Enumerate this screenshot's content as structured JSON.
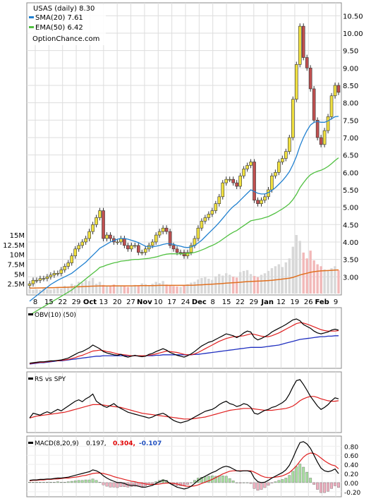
{
  "chart_data": [
    {
      "type": "candlestick",
      "legend": {
        "title": "USAS (daily) 8.30",
        "sma": "SMA(20) 7.61",
        "ema": "EMA(50) 6.42",
        "source": "OptionChance.com"
      },
      "colors": {
        "up": "#f0e040",
        "down": "#c05050",
        "sma": "#2080d0",
        "ema": "#50c040",
        "vol_avg": "#e07020"
      },
      "y_ticks": [
        "10.50",
        "10.00",
        "9.50",
        "9.00",
        "8.50",
        "8.00",
        "7.50",
        "7.00",
        "6.50",
        "6.00",
        "5.50",
        "5.00",
        "4.50",
        "4.00",
        "3.50",
        "3.00"
      ],
      "y_tick_values": [
        10.5,
        10.0,
        9.5,
        9.0,
        8.5,
        8.0,
        7.5,
        7.0,
        6.5,
        6.0,
        5.5,
        5.0,
        4.5,
        4.0,
        3.5,
        3.0
      ],
      "ylim": [
        2.6,
        10.75
      ],
      "volume_ticks": [
        "15M",
        "12.5M",
        "10M",
        "7.5M",
        "5M",
        "2.5M"
      ],
      "volume_tick_values": [
        15,
        12.5,
        10,
        7.5,
        5,
        2.5
      ],
      "volume_max": 17,
      "x_ticks": [
        "8",
        "15",
        "22",
        "29",
        "Oct",
        "13",
        "20",
        "27",
        "Nov",
        "10",
        "17",
        "24",
        "Dec",
        "8",
        "15",
        "22",
        "29",
        "Jan",
        "12",
        "19",
        "26",
        "Feb",
        "9"
      ],
      "close": [
        2.8,
        2.9,
        2.9,
        2.95,
        2.95,
        3.0,
        3.05,
        3.1,
        3.1,
        3.2,
        3.3,
        3.4,
        3.6,
        3.8,
        3.9,
        4.0,
        4.1,
        4.3,
        4.5,
        4.7,
        4.9,
        4.1,
        4.2,
        4.1,
        4.0,
        4.0,
        4.1,
        3.9,
        3.8,
        3.9,
        3.9,
        3.7,
        3.7,
        3.8,
        3.9,
        4.0,
        4.2,
        4.3,
        4.4,
        4.3,
        3.9,
        3.8,
        3.7,
        3.7,
        3.6,
        3.7,
        3.9,
        4.1,
        4.4,
        4.6,
        4.7,
        4.8,
        4.9,
        5.1,
        5.3,
        5.7,
        5.8,
        5.8,
        5.7,
        5.6,
        5.9,
        6.1,
        6.2,
        6.3,
        5.2,
        5.1,
        5.2,
        5.3,
        5.5,
        5.9,
        6.0,
        6.3,
        6.4,
        6.6,
        7.0,
        8.1,
        9.1,
        10.2,
        9.3,
        9.0,
        8.4,
        7.5,
        7.0,
        6.8,
        7.2,
        7.6,
        8.2,
        8.5,
        8.3
      ],
      "volume": [
        1.2,
        1.0,
        1.1,
        0.9,
        1.3,
        1.1,
        1.0,
        1.2,
        1.5,
        1.3,
        2.0,
        1.8,
        2.5,
        2.2,
        3.0,
        2.8,
        3.5,
        3.2,
        4.0,
        2.5,
        3.0,
        2.2,
        2.0,
        1.8,
        2.3,
        2.1,
        1.9,
        2.0,
        1.7,
        1.8,
        2.2,
        2.0,
        2.6,
        2.4,
        2.1,
        2.5,
        3.0,
        2.7,
        3.2,
        2.3,
        2.0,
        1.9,
        1.8,
        1.7,
        2.0,
        2.4,
        2.8,
        3.0,
        3.6,
        4.0,
        4.2,
        3.8,
        3.5,
        4.4,
        5.0,
        4.6,
        5.2,
        4.8,
        4.3,
        4.1,
        5.5,
        5.8,
        6.0,
        5.0,
        4.5,
        4.2,
        4.8,
        5.2,
        5.8,
        6.5,
        7.0,
        7.5,
        6.8,
        8.0,
        9.0,
        12.0,
        15.0,
        13.5,
        10.5,
        9.0,
        11.0,
        8.5,
        7.5,
        7.0,
        6.2,
        5.8,
        6.5,
        7.0,
        6.0
      ],
      "volume_avg_label": "",
      "sma20": [
        2.3,
        2.38,
        2.46,
        2.54,
        2.62,
        2.7,
        2.78,
        2.84,
        2.9,
        2.95,
        3.0,
        3.05,
        3.1,
        3.18,
        3.26,
        3.34,
        3.42,
        3.52,
        3.62,
        3.72,
        3.82,
        3.88,
        3.94,
        4.0,
        4.04,
        4.08,
        4.1,
        4.1,
        4.08,
        4.05,
        4.02,
        3.98,
        3.93,
        3.88,
        3.86,
        3.86,
        3.88,
        3.9,
        3.93,
        3.95,
        3.95,
        3.93,
        3.9,
        3.88,
        3.85,
        3.84,
        3.86,
        3.9,
        3.97,
        4.05,
        4.15,
        4.25,
        4.35,
        4.45,
        4.56,
        4.68,
        4.8,
        4.92,
        5.02,
        5.1,
        5.2,
        5.3,
        5.4,
        5.5,
        5.45,
        5.4,
        5.38,
        5.38,
        5.42,
        5.48,
        5.56,
        5.66,
        5.76,
        5.88,
        6.02,
        6.22,
        6.46,
        6.76,
        7.0,
        7.2,
        7.36,
        7.44,
        7.46,
        7.44,
        7.44,
        7.48,
        7.54,
        7.6,
        7.61
      ],
      "ema50": [
        1.9,
        1.96,
        2.02,
        2.08,
        2.14,
        2.2,
        2.26,
        2.32,
        2.38,
        2.44,
        2.5,
        2.56,
        2.62,
        2.7,
        2.78,
        2.86,
        2.94,
        3.02,
        3.1,
        3.18,
        3.27,
        3.3,
        3.34,
        3.37,
        3.4,
        3.42,
        3.45,
        3.46,
        3.47,
        3.49,
        3.5,
        3.5,
        3.51,
        3.52,
        3.53,
        3.55,
        3.57,
        3.6,
        3.63,
        3.65,
        3.66,
        3.66,
        3.66,
        3.66,
        3.66,
        3.67,
        3.68,
        3.7,
        3.73,
        3.77,
        3.81,
        3.86,
        3.9,
        3.95,
        4.01,
        4.08,
        4.15,
        4.22,
        4.28,
        4.33,
        4.4,
        4.47,
        4.54,
        4.61,
        4.63,
        4.65,
        4.67,
        4.7,
        4.73,
        4.78,
        4.83,
        4.89,
        4.95,
        5.02,
        5.1,
        5.22,
        5.37,
        5.56,
        5.7,
        5.83,
        5.93,
        5.99,
        6.03,
        6.06,
        6.11,
        6.17,
        6.25,
        6.34,
        6.42
      ],
      "vol_avg": [
        1.4,
        1.4,
        1.42,
        1.44,
        1.46,
        1.48,
        1.5,
        1.52,
        1.55,
        1.58,
        1.6,
        1.63,
        1.66,
        1.7,
        1.74,
        1.78,
        1.82,
        1.86,
        1.9,
        1.92,
        1.94,
        1.95,
        1.96,
        1.96,
        1.97,
        1.98,
        1.98,
        1.98,
        1.98,
        1.98,
        1.99,
        2.0,
        2.02,
        2.03,
        2.04,
        2.05,
        2.07,
        2.09,
        2.1,
        2.1,
        2.1,
        2.1,
        2.1,
        2.1,
        2.1,
        2.11,
        2.13,
        2.16,
        2.2,
        2.25,
        2.3,
        2.35,
        2.4,
        2.46,
        2.52,
        2.58,
        2.65,
        2.72,
        2.78,
        2.83,
        2.9,
        2.98,
        3.05,
        3.1,
        3.14,
        3.18,
        3.22,
        3.27,
        3.33,
        3.4,
        3.5,
        3.6,
        3.7,
        3.82,
        3.95,
        4.15,
        4.45,
        4.75,
        5.0,
        5.2,
        5.45,
        5.6,
        5.72,
        5.8,
        5.86,
        5.9,
        5.95,
        6.0,
        6.05
      ]
    },
    {
      "type": "line",
      "legend": "OBV(10) (50)",
      "obv": [
        0.05,
        0.06,
        0.07,
        0.08,
        0.08,
        0.09,
        0.1,
        0.1,
        0.11,
        0.12,
        0.14,
        0.16,
        0.2,
        0.24,
        0.28,
        0.3,
        0.34,
        0.38,
        0.44,
        0.4,
        0.36,
        0.3,
        0.27,
        0.25,
        0.23,
        0.22,
        0.24,
        0.2,
        0.18,
        0.2,
        0.22,
        0.2,
        0.19,
        0.2,
        0.24,
        0.26,
        0.3,
        0.33,
        0.36,
        0.33,
        0.28,
        0.25,
        0.22,
        0.2,
        0.18,
        0.21,
        0.25,
        0.3,
        0.36,
        0.42,
        0.46,
        0.5,
        0.52,
        0.56,
        0.6,
        0.64,
        0.68,
        0.66,
        0.64,
        0.6,
        0.64,
        0.7,
        0.74,
        0.72,
        0.6,
        0.55,
        0.58,
        0.62,
        0.66,
        0.72,
        0.76,
        0.8,
        0.84,
        0.88,
        0.93,
        0.98,
        1.0,
        0.96,
        0.88,
        0.84,
        0.8,
        0.74,
        0.7,
        0.68,
        0.7,
        0.72,
        0.76,
        0.78,
        0.76
      ],
      "obv10": [
        0.04,
        0.05,
        0.06,
        0.07,
        0.07,
        0.08,
        0.09,
        0.1,
        0.1,
        0.11,
        0.12,
        0.13,
        0.15,
        0.17,
        0.2,
        0.22,
        0.25,
        0.28,
        0.31,
        0.32,
        0.33,
        0.32,
        0.3,
        0.29,
        0.27,
        0.25,
        0.24,
        0.23,
        0.22,
        0.21,
        0.21,
        0.21,
        0.21,
        0.21,
        0.22,
        0.23,
        0.25,
        0.27,
        0.29,
        0.31,
        0.3,
        0.29,
        0.28,
        0.26,
        0.24,
        0.23,
        0.23,
        0.25,
        0.28,
        0.32,
        0.36,
        0.4,
        0.44,
        0.48,
        0.52,
        0.55,
        0.58,
        0.6,
        0.62,
        0.62,
        0.63,
        0.64,
        0.66,
        0.68,
        0.67,
        0.65,
        0.63,
        0.62,
        0.62,
        0.64,
        0.67,
        0.7,
        0.74,
        0.78,
        0.82,
        0.86,
        0.9,
        0.92,
        0.91,
        0.89,
        0.86,
        0.83,
        0.8,
        0.77,
        0.75,
        0.74,
        0.74,
        0.74,
        0.75
      ],
      "obv50": [
        0.03,
        0.04,
        0.05,
        0.06,
        0.06,
        0.07,
        0.08,
        0.09,
        0.1,
        0.1,
        0.11,
        0.12,
        0.13,
        0.14,
        0.15,
        0.16,
        0.17,
        0.18,
        0.19,
        0.2,
        0.2,
        0.21,
        0.21,
        0.21,
        0.21,
        0.21,
        0.21,
        0.21,
        0.21,
        0.21,
        0.21,
        0.21,
        0.21,
        0.21,
        0.21,
        0.21,
        0.22,
        0.22,
        0.23,
        0.23,
        0.23,
        0.23,
        0.23,
        0.23,
        0.23,
        0.23,
        0.23,
        0.24,
        0.24,
        0.25,
        0.26,
        0.27,
        0.28,
        0.29,
        0.3,
        0.31,
        0.32,
        0.33,
        0.34,
        0.35,
        0.36,
        0.37,
        0.38,
        0.39,
        0.39,
        0.39,
        0.39,
        0.4,
        0.41,
        0.42,
        0.43,
        0.44,
        0.46,
        0.48,
        0.5,
        0.52,
        0.54,
        0.56,
        0.57,
        0.58,
        0.59,
        0.6,
        0.61,
        0.62,
        0.62,
        0.63,
        0.63,
        0.64,
        0.64
      ]
    },
    {
      "type": "line",
      "legend": "RS vs SPY",
      "rs": [
        0.2,
        0.3,
        0.28,
        0.26,
        0.3,
        0.33,
        0.3,
        0.34,
        0.38,
        0.35,
        0.4,
        0.45,
        0.5,
        0.55,
        0.58,
        0.54,
        0.6,
        0.64,
        0.7,
        0.55,
        0.5,
        0.45,
        0.42,
        0.46,
        0.5,
        0.44,
        0.4,
        0.36,
        0.32,
        0.3,
        0.28,
        0.26,
        0.24,
        0.22,
        0.2,
        0.22,
        0.26,
        0.28,
        0.3,
        0.26,
        0.2,
        0.15,
        0.12,
        0.1,
        0.12,
        0.14,
        0.18,
        0.22,
        0.26,
        0.3,
        0.34,
        0.36,
        0.38,
        0.42,
        0.48,
        0.52,
        0.55,
        0.5,
        0.48,
        0.44,
        0.46,
        0.5,
        0.48,
        0.42,
        0.3,
        0.28,
        0.32,
        0.36,
        0.38,
        0.42,
        0.44,
        0.48,
        0.52,
        0.58,
        0.7,
        0.85,
        0.98,
        1.0,
        0.9,
        0.78,
        0.65,
        0.55,
        0.45,
        0.38,
        0.42,
        0.48,
        0.56,
        0.62,
        0.6
      ],
      "rs_ma": [
        0.2,
        0.22,
        0.24,
        0.25,
        0.26,
        0.27,
        0.28,
        0.29,
        0.3,
        0.31,
        0.32,
        0.34,
        0.36,
        0.38,
        0.4,
        0.42,
        0.44,
        0.46,
        0.48,
        0.48,
        0.48,
        0.47,
        0.46,
        0.45,
        0.44,
        0.43,
        0.42,
        0.4,
        0.38,
        0.36,
        0.34,
        0.32,
        0.3,
        0.29,
        0.28,
        0.27,
        0.26,
        0.25,
        0.24,
        0.23,
        0.22,
        0.21,
        0.2,
        0.19,
        0.18,
        0.18,
        0.18,
        0.19,
        0.2,
        0.21,
        0.22,
        0.24,
        0.26,
        0.28,
        0.3,
        0.32,
        0.34,
        0.36,
        0.37,
        0.38,
        0.39,
        0.4,
        0.4,
        0.4,
        0.39,
        0.38,
        0.37,
        0.36,
        0.36,
        0.36,
        0.37,
        0.38,
        0.39,
        0.4,
        0.42,
        0.45,
        0.5,
        0.56,
        0.6,
        0.63,
        0.65,
        0.65,
        0.63,
        0.6,
        0.58,
        0.56,
        0.55,
        0.55,
        0.56
      ]
    },
    {
      "type": "line",
      "legend": {
        "label": "MACD(8,20,9)",
        "v1": "0.197,",
        "v2": "0.304,",
        "v3": "-0.107"
      },
      "y_ticks": [
        "0.80",
        "0.60",
        "0.40",
        "0.20",
        "0.00",
        "-0.20"
      ],
      "y_tick_values": [
        0.8,
        0.6,
        0.4,
        0.2,
        0.0,
        -0.2
      ],
      "ylim": [
        -0.28,
        0.96
      ],
      "macd": [
        0.05,
        0.06,
        0.06,
        0.07,
        0.07,
        0.08,
        0.08,
        0.09,
        0.1,
        0.1,
        0.11,
        0.12,
        0.14,
        0.16,
        0.18,
        0.2,
        0.22,
        0.24,
        0.28,
        0.26,
        0.22,
        0.15,
        0.1,
        0.06,
        0.03,
        0.0,
        0.0,
        -0.02,
        -0.05,
        -0.06,
        -0.06,
        -0.08,
        -0.1,
        -0.1,
        -0.08,
        -0.06,
        -0.02,
        0.02,
        0.05,
        0.04,
        -0.02,
        -0.06,
        -0.1,
        -0.12,
        -0.14,
        -0.12,
        -0.08,
        -0.02,
        0.05,
        0.1,
        0.14,
        0.18,
        0.22,
        0.25,
        0.3,
        0.34,
        0.36,
        0.34,
        0.3,
        0.26,
        0.25,
        0.26,
        0.26,
        0.24,
        0.1,
        0.02,
        0.0,
        0.01,
        0.05,
        0.1,
        0.14,
        0.18,
        0.22,
        0.28,
        0.38,
        0.54,
        0.72,
        0.88,
        0.9,
        0.85,
        0.75,
        0.6,
        0.45,
        0.32,
        0.26,
        0.24,
        0.26,
        0.3,
        0.197
      ],
      "signal": [
        0.04,
        0.05,
        0.05,
        0.06,
        0.06,
        0.07,
        0.07,
        0.08,
        0.08,
        0.09,
        0.1,
        0.1,
        0.11,
        0.12,
        0.13,
        0.15,
        0.16,
        0.18,
        0.2,
        0.21,
        0.21,
        0.2,
        0.18,
        0.16,
        0.13,
        0.11,
        0.09,
        0.07,
        0.05,
        0.03,
        0.02,
        0.0,
        -0.01,
        -0.03,
        -0.04,
        -0.04,
        -0.04,
        -0.03,
        -0.02,
        -0.01,
        -0.01,
        -0.02,
        -0.03,
        -0.05,
        -0.07,
        -0.08,
        -0.08,
        -0.07,
        -0.05,
        -0.02,
        0.01,
        0.04,
        0.07,
        0.11,
        0.15,
        0.19,
        0.22,
        0.25,
        0.26,
        0.26,
        0.26,
        0.26,
        0.26,
        0.26,
        0.23,
        0.19,
        0.15,
        0.12,
        0.11,
        0.11,
        0.12,
        0.13,
        0.15,
        0.18,
        0.22,
        0.29,
        0.37,
        0.47,
        0.56,
        0.62,
        0.65,
        0.64,
        0.6,
        0.54,
        0.48,
        0.43,
        0.39,
        0.37,
        0.304
      ],
      "hist": [
        0.01,
        0.01,
        0.01,
        0.01,
        0.01,
        0.01,
        0.01,
        0.01,
        0.02,
        0.01,
        0.01,
        0.02,
        0.03,
        0.04,
        0.05,
        0.05,
        0.06,
        0.06,
        0.08,
        0.05,
        0.01,
        -0.05,
        -0.08,
        -0.1,
        -0.1,
        -0.11,
        -0.09,
        -0.09,
        -0.1,
        -0.09,
        -0.08,
        -0.08,
        -0.09,
        -0.07,
        -0.04,
        -0.02,
        0.02,
        0.05,
        0.07,
        0.05,
        -0.01,
        -0.04,
        -0.07,
        -0.07,
        -0.07,
        -0.04,
        0.0,
        0.05,
        0.1,
        0.12,
        0.13,
        0.14,
        0.15,
        0.14,
        0.15,
        0.15,
        0.14,
        0.09,
        0.04,
        0.0,
        -0.01,
        0.0,
        0.0,
        -0.02,
        -0.13,
        -0.17,
        -0.15,
        -0.11,
        -0.06,
        -0.01,
        0.02,
        0.05,
        0.07,
        0.1,
        0.16,
        0.25,
        0.35,
        0.41,
        0.34,
        0.23,
        0.1,
        -0.04,
        -0.15,
        -0.22,
        -0.22,
        -0.19,
        -0.13,
        -0.07,
        -0.107
      ]
    }
  ]
}
